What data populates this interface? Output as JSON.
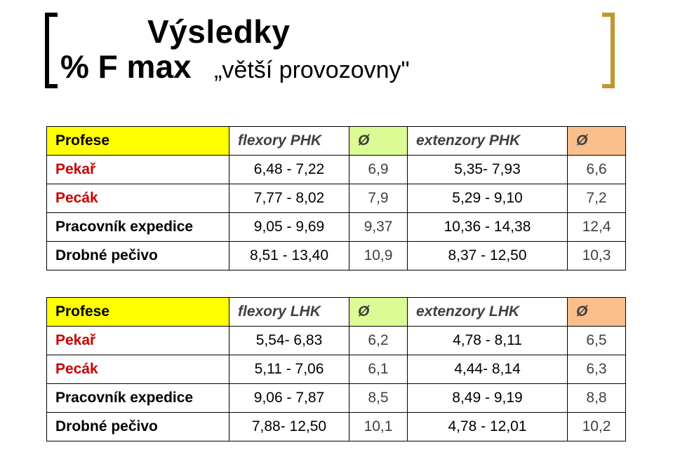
{
  "heading": {
    "line1": "Výsledky",
    "line2_big": "% F max",
    "line2_sub": "„větší provozovny\""
  },
  "symbols": {
    "avg": "Ø"
  },
  "table1": {
    "headers": {
      "profese": "Profese",
      "flex": "flexory PHK",
      "ext": "extenzory PHK"
    },
    "rows": [
      {
        "label": "Pekař",
        "labelClass": "row-red",
        "flex": "6,48 - 7,22",
        "flex_avg": "6,9",
        "ext": "5,35- 7,93",
        "ext_avg": "6,6"
      },
      {
        "label": "Pecák",
        "labelClass": "row-red",
        "flex": "7,77 - 8,02",
        "flex_avg": "7,9",
        "ext": "5,29 - 9,10",
        "ext_avg": "7,2"
      },
      {
        "label": "Pracovník expedice",
        "labelClass": "row-lbl",
        "flex": "9,05 - 9,69",
        "flex_avg": "9,37",
        "ext": "10,36 - 14,38",
        "ext_avg": "12,4"
      },
      {
        "label": "Drobné pečivo",
        "labelClass": "row-lbl",
        "flex": "8,51 - 13,40",
        "flex_avg": "10,9",
        "ext": "8,37 - 12,50",
        "ext_avg": "10,3"
      }
    ]
  },
  "table2": {
    "headers": {
      "profese": "Profese",
      "flex": "flexory LHK",
      "ext": "extenzory LHK"
    },
    "rows": [
      {
        "label": "Pekař",
        "labelClass": "row-red",
        "flex": "5,54- 6,83",
        "flex_avg": "6,2",
        "ext": "4,78 - 8,11",
        "ext_avg": "6,5"
      },
      {
        "label": "Pecák",
        "labelClass": "row-red",
        "flex": "5,11 - 7,06",
        "flex_avg": "6,1",
        "ext": "4,44- 8,14",
        "ext_avg": "6,3"
      },
      {
        "label": "Pracovník expedice",
        "labelClass": "row-lbl",
        "flex": "9,06 - 7,87",
        "flex_avg": "8,5",
        "ext": "8,49 - 9,19",
        "ext_avg": "8,8"
      },
      {
        "label": "Drobné pečivo",
        "labelClass": "row-lbl",
        "flex": "7,88- 12,50",
        "flex_avg": "10,1",
        "ext": "4,78 - 12,01",
        "ext_avg": "10,2"
      }
    ]
  },
  "colors": {
    "bracket_left": "#000000",
    "bracket_right": "#c0962e",
    "hdr_yellow": "#ffff00",
    "hdr_lime": "#ddfb95",
    "hdr_orange": "#fbbf8b",
    "row_red": "#cc0000"
  }
}
